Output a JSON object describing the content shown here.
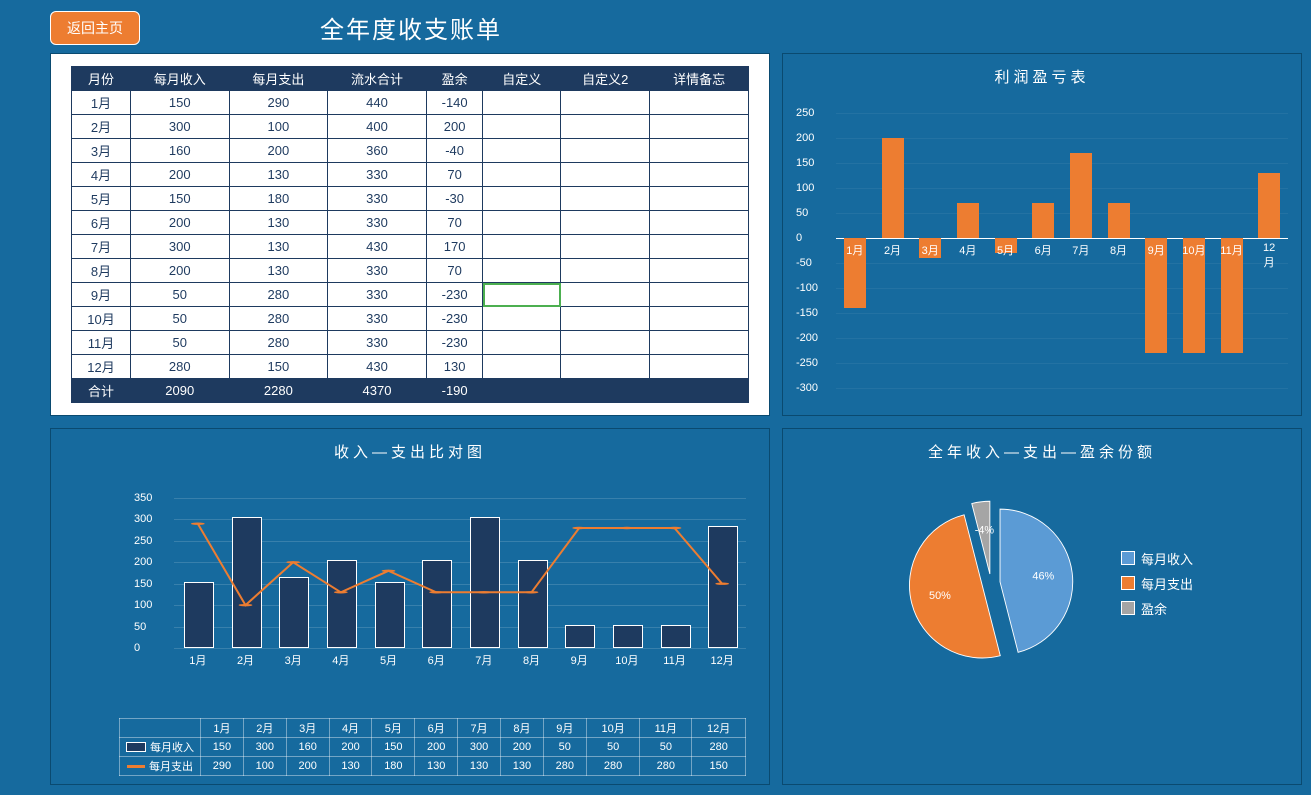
{
  "header": {
    "back_label": "返回主页",
    "title": "全年度收支账单"
  },
  "table": {
    "columns": [
      "月份",
      "每月收入",
      "每月支出",
      "流水合计",
      "盈余",
      "自定义",
      "自定义2",
      "详情备忘"
    ],
    "rows": [
      [
        "1月",
        150,
        290,
        440,
        -140,
        "",
        "",
        ""
      ],
      [
        "2月",
        300,
        100,
        400,
        200,
        "",
        "",
        ""
      ],
      [
        "3月",
        160,
        200,
        360,
        -40,
        "",
        "",
        ""
      ],
      [
        "4月",
        200,
        130,
        330,
        70,
        "",
        "",
        ""
      ],
      [
        "5月",
        150,
        180,
        330,
        -30,
        "",
        "",
        ""
      ],
      [
        "6月",
        200,
        130,
        330,
        70,
        "",
        "",
        ""
      ],
      [
        "7月",
        300,
        130,
        430,
        170,
        "",
        "",
        ""
      ],
      [
        "8月",
        200,
        130,
        330,
        70,
        "",
        "",
        ""
      ],
      [
        "9月",
        50,
        280,
        330,
        -230,
        "",
        "",
        ""
      ],
      [
        "10月",
        50,
        280,
        330,
        -230,
        "",
        "",
        ""
      ],
      [
        "11月",
        50,
        280,
        330,
        -230,
        "",
        "",
        ""
      ],
      [
        "12月",
        280,
        150,
        430,
        130,
        "",
        "",
        ""
      ]
    ],
    "total_label": "合计",
    "totals": [
      2090,
      2280,
      4370,
      -190,
      "",
      "",
      ""
    ],
    "selected_cell": {
      "row": 8,
      "col": 5
    }
  },
  "profit_chart": {
    "title": "利润盈亏表",
    "type": "bar",
    "categories": [
      "1月",
      "2月",
      "3月",
      "4月",
      "5月",
      "6月",
      "7月",
      "8月",
      "9月",
      "10月",
      "11月",
      "12月"
    ],
    "values": [
      -140,
      200,
      -40,
      70,
      -30,
      70,
      170,
      70,
      -230,
      -230,
      -230,
      130
    ],
    "bar_color": "#ed7d31",
    "ylim": [
      -300,
      250
    ],
    "ytick_step": 50,
    "axis_color": "#ffffff",
    "label_fontsize": 11
  },
  "combo_chart": {
    "title": "收入—支出比对图",
    "type": "bar+line",
    "categories": [
      "1月",
      "2月",
      "3月",
      "4月",
      "5月",
      "6月",
      "7月",
      "8月",
      "9月",
      "10月",
      "11月",
      "12月"
    ],
    "series": [
      {
        "name": "每月收入",
        "type": "bar",
        "color": "#1e3a5f",
        "values": [
          150,
          300,
          160,
          200,
          150,
          200,
          300,
          200,
          50,
          50,
          50,
          280
        ]
      },
      {
        "name": "每月支出",
        "type": "line",
        "color": "#ed7d31",
        "values": [
          290,
          100,
          200,
          130,
          180,
          130,
          130,
          130,
          280,
          280,
          280,
          150
        ]
      }
    ],
    "ylim": [
      0,
      350
    ],
    "ytick_step": 50,
    "grid_color": "rgba(255,255,255,0.15)",
    "label_fontsize": 11
  },
  "pie_chart": {
    "title": "全年收入—支出—盈余份额",
    "type": "pie",
    "slices": [
      {
        "name": "每月收入",
        "value": 46,
        "label": "46%",
        "color": "#5b9bd5"
      },
      {
        "name": "每月支出",
        "value": 50,
        "label": "50%",
        "color": "#ed7d31"
      },
      {
        "name": "盈余",
        "value": 4,
        "label": "-4%",
        "color": "#a5a5a5"
      }
    ],
    "explode": true,
    "legend_items": [
      "每月收入",
      "每月支出",
      "盈余"
    ]
  },
  "colors": {
    "background": "#166a9e",
    "accent": "#ed7d31",
    "dark": "#1e3a5f",
    "blue": "#5b9bd5",
    "grey": "#a5a5a5"
  }
}
